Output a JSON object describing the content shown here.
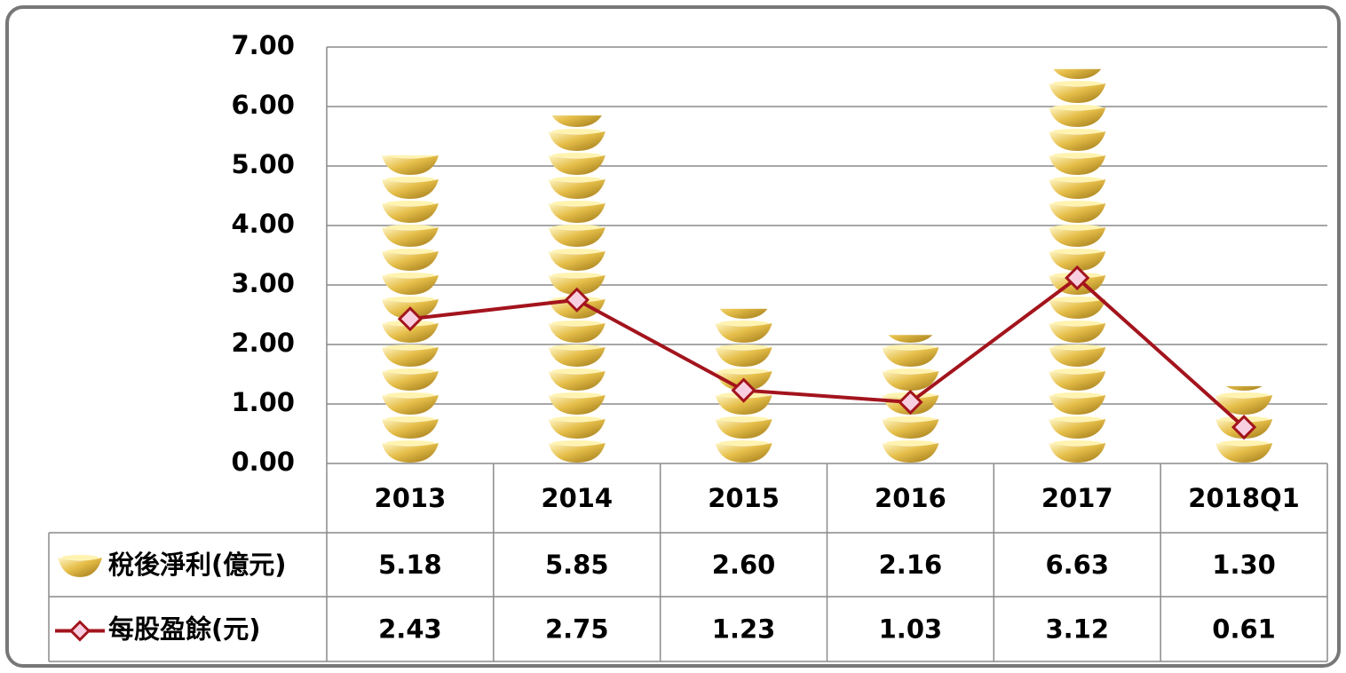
{
  "chart_data": {
    "type": "bar",
    "categories": [
      "2013",
      "2014",
      "2015",
      "2016",
      "2017",
      "2018Q1"
    ],
    "series": [
      {
        "name": "稅後淨利(億元)",
        "type": "bar",
        "color": "#e6bf4a",
        "values": [
          5.18,
          5.85,
          2.6,
          2.16,
          6.63,
          1.3
        ],
        "value_labels": [
          "5.18",
          "5.85",
          "2.60",
          "2.16",
          "6.63",
          "1.30"
        ]
      },
      {
        "name": "每股盈餘(元)",
        "type": "line",
        "color": "#a3141d",
        "marker_fill": "#f8cfe0",
        "values": [
          2.43,
          2.75,
          1.23,
          1.03,
          3.12,
          0.61
        ],
        "value_labels": [
          "2.43",
          "2.75",
          "1.23",
          "1.03",
          "3.12",
          "0.61"
        ]
      }
    ],
    "ylim": [
      0,
      7
    ],
    "yticks": [
      {
        "value": 0,
        "label": "0.00"
      },
      {
        "value": 1,
        "label": "1.00"
      },
      {
        "value": 2,
        "label": "2.00"
      },
      {
        "value": 3,
        "label": "3.00"
      },
      {
        "value": 4,
        "label": "4.00"
      },
      {
        "value": 5,
        "label": "5.00"
      },
      {
        "value": 6,
        "label": "6.00"
      },
      {
        "value": 7,
        "label": "7.00"
      }
    ],
    "grid": true
  }
}
